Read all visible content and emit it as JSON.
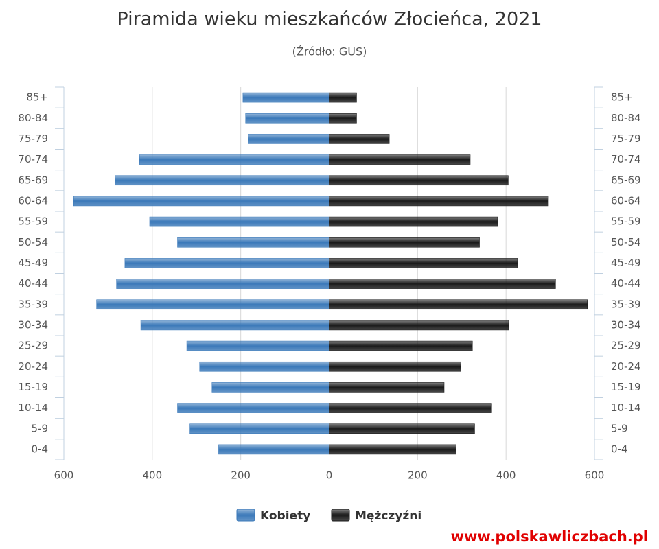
{
  "chart_data": {
    "type": "pyramid",
    "title": "Piramida wieku mieszkańców Złocieńca, 2021",
    "subtitle": "(Źródło: GUS)",
    "source_url": "www.polskawliczbach.pl",
    "categories": [
      "85+",
      "80-84",
      "75-79",
      "70-74",
      "65-69",
      "60-64",
      "55-59",
      "50-54",
      "45-49",
      "40-44",
      "35-39",
      "30-34",
      "25-29",
      "20-24",
      "15-19",
      "10-14",
      "5-9",
      "0-4"
    ],
    "series": [
      {
        "name": "Kobiety",
        "color": "#3b79b9",
        "values": [
          195,
          189,
          183,
          429,
          484,
          578,
          406,
          343,
          462,
          481,
          526,
          426,
          322,
          293,
          265,
          343,
          315,
          250
        ]
      },
      {
        "name": "Mężczyźni",
        "color": "#1a1a1a",
        "values": [
          62,
          62,
          136,
          319,
          405,
          496,
          381,
          340,
          426,
          512,
          584,
          406,
          324,
          298,
          260,
          366,
          329,
          287
        ]
      }
    ],
    "xlim": [
      -600,
      600
    ],
    "xticks": [
      {
        "value": -600,
        "label": "600"
      },
      {
        "value": -400,
        "label": "400"
      },
      {
        "value": -200,
        "label": "200"
      },
      0,
      200,
      400,
      600
    ],
    "grid": true
  }
}
